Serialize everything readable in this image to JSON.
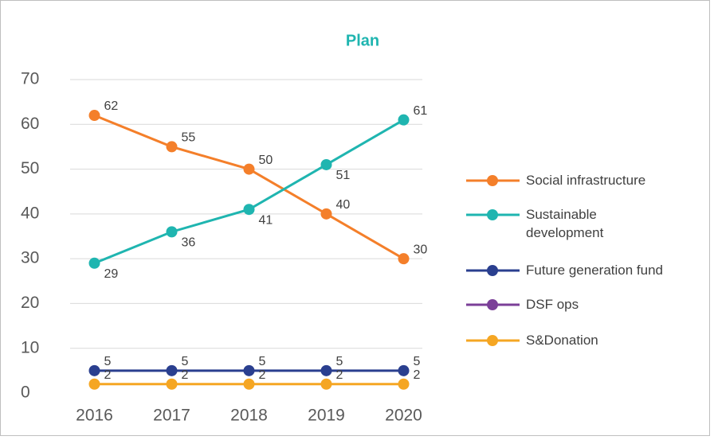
{
  "chart_data": {
    "type": "line",
    "title": "Plan",
    "categories": [
      "2016",
      "2017",
      "2018",
      "2019",
      "2020"
    ],
    "series": [
      {
        "name": "Social infrastructure",
        "color": "#f47f2a",
        "values": [
          62,
          55,
          50,
          40,
          30
        ]
      },
      {
        "name": "Sustainable development",
        "color": "#1fb5b0",
        "values": [
          29,
          36,
          41,
          51,
          61
        ]
      },
      {
        "name": "Future generation fund",
        "color": "#2a3f8f",
        "values": [
          5,
          5,
          5,
          5,
          5
        ]
      },
      {
        "name": "DSF ops",
        "color": "#7b3f98",
        "values": [
          null,
          null,
          null,
          null,
          null
        ]
      },
      {
        "name": "S&Donation",
        "color": "#f5a623",
        "values": [
          2,
          2,
          2,
          2,
          2
        ]
      }
    ],
    "ylim": [
      0,
      70
    ],
    "yticks": [
      0,
      10,
      20,
      30,
      40,
      50,
      60,
      70
    ],
    "grid": true,
    "legend": "right"
  }
}
